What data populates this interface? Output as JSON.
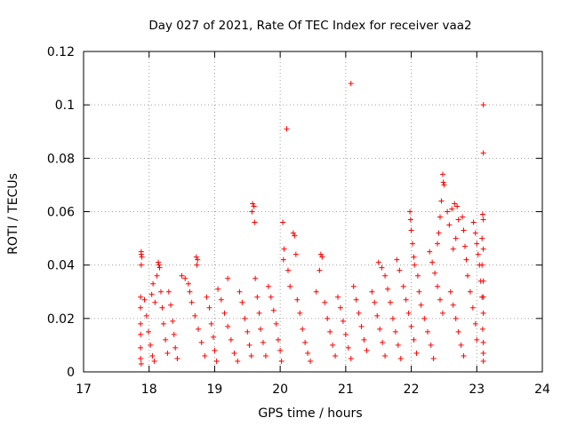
{
  "chart_data": {
    "type": "scatter",
    "title": "Day 027 of 2021, Rate Of TEC Index for receiver vaa2",
    "xlabel": "GPS time / hours",
    "ylabel": "ROTI / TECUs",
    "xlim": [
      17,
      24
    ],
    "ylim": [
      0,
      0.12
    ],
    "x_ticks": [
      "17",
      "18",
      "19",
      "20",
      "21",
      "22",
      "23",
      "24"
    ],
    "y_ticks": [
      "0",
      "0.02",
      "0.04",
      "0.06",
      "0.08",
      "0.1",
      "0.12"
    ],
    "x_tick_values": [
      17,
      18,
      19,
      20,
      21,
      22,
      23,
      24
    ],
    "y_tick_values": [
      0,
      0.02,
      0.04,
      0.06,
      0.08,
      0.1,
      0.12
    ],
    "grid": true,
    "marker": "+",
    "marker_color": "#ff0000",
    "series": [
      {
        "points": [
          [
            17.88,
            0.045
          ],
          [
            17.88,
            0.044
          ],
          [
            17.89,
            0.043
          ],
          [
            17.88,
            0.04
          ],
          [
            17.87,
            0.028
          ],
          [
            17.87,
            0.024
          ],
          [
            17.87,
            0.018
          ],
          [
            17.87,
            0.014
          ],
          [
            17.87,
            0.009
          ],
          [
            17.87,
            0.005
          ],
          [
            17.88,
            0.003
          ],
          [
            17.93,
            0.027
          ],
          [
            17.96,
            0.021
          ],
          [
            17.99,
            0.015
          ],
          [
            18.02,
            0.01
          ],
          [
            18.05,
            0.006
          ],
          [
            18.08,
            0.004
          ],
          [
            18.04,
            0.029
          ],
          [
            18.06,
            0.033
          ],
          [
            18.09,
            0.026
          ],
          [
            18.14,
            0.041
          ],
          [
            18.15,
            0.04
          ],
          [
            18.16,
            0.039
          ],
          [
            18.12,
            0.036
          ],
          [
            18.18,
            0.03
          ],
          [
            18.2,
            0.024
          ],
          [
            18.22,
            0.018
          ],
          [
            18.25,
            0.012
          ],
          [
            18.28,
            0.007
          ],
          [
            18.3,
            0.03
          ],
          [
            18.33,
            0.025
          ],
          [
            18.36,
            0.019
          ],
          [
            18.38,
            0.014
          ],
          [
            18.4,
            0.009
          ],
          [
            18.43,
            0.005
          ],
          [
            18.5,
            0.036
          ],
          [
            18.55,
            0.035
          ],
          [
            18.6,
            0.033
          ],
          [
            18.62,
            0.03
          ],
          [
            18.65,
            0.026
          ],
          [
            18.7,
            0.021
          ],
          [
            18.75,
            0.016
          ],
          [
            18.8,
            0.011
          ],
          [
            18.85,
            0.006
          ],
          [
            18.72,
            0.043
          ],
          [
            18.74,
            0.042
          ],
          [
            18.73,
            0.04
          ],
          [
            18.88,
            0.028
          ],
          [
            18.92,
            0.024
          ],
          [
            18.95,
            0.018
          ],
          [
            18.98,
            0.013
          ],
          [
            19.0,
            0.008
          ],
          [
            19.03,
            0.004
          ],
          [
            19.05,
            0.031
          ],
          [
            19.1,
            0.027
          ],
          [
            19.15,
            0.022
          ],
          [
            19.2,
            0.017
          ],
          [
            19.25,
            0.012
          ],
          [
            19.3,
            0.007
          ],
          [
            19.35,
            0.004
          ],
          [
            19.2,
            0.035
          ],
          [
            19.38,
            0.03
          ],
          [
            19.42,
            0.026
          ],
          [
            19.46,
            0.02
          ],
          [
            19.5,
            0.015
          ],
          [
            19.53,
            0.01
          ],
          [
            19.56,
            0.006
          ],
          [
            19.58,
            0.063
          ],
          [
            19.6,
            0.062
          ],
          [
            19.57,
            0.06
          ],
          [
            19.61,
            0.056
          ],
          [
            19.62,
            0.035
          ],
          [
            19.65,
            0.028
          ],
          [
            19.68,
            0.022
          ],
          [
            19.7,
            0.016
          ],
          [
            19.74,
            0.011
          ],
          [
            19.78,
            0.006
          ],
          [
            19.82,
            0.032
          ],
          [
            19.86,
            0.028
          ],
          [
            19.9,
            0.023
          ],
          [
            19.94,
            0.018
          ],
          [
            19.97,
            0.012
          ],
          [
            20.0,
            0.008
          ],
          [
            20.02,
            0.004
          ],
          [
            20.04,
            0.056
          ],
          [
            20.06,
            0.046
          ],
          [
            20.05,
            0.042
          ],
          [
            20.1,
            0.091
          ],
          [
            20.12,
            0.038
          ],
          [
            20.15,
            0.032
          ],
          [
            20.2,
            0.052
          ],
          [
            20.22,
            0.051
          ],
          [
            20.24,
            0.044
          ],
          [
            20.26,
            0.027
          ],
          [
            20.3,
            0.022
          ],
          [
            20.34,
            0.016
          ],
          [
            20.38,
            0.011
          ],
          [
            20.42,
            0.007
          ],
          [
            20.46,
            0.004
          ],
          [
            20.62,
            0.044
          ],
          [
            20.64,
            0.043
          ],
          [
            20.6,
            0.038
          ],
          [
            20.55,
            0.03
          ],
          [
            20.68,
            0.026
          ],
          [
            20.72,
            0.02
          ],
          [
            20.76,
            0.015
          ],
          [
            20.8,
            0.01
          ],
          [
            20.84,
            0.006
          ],
          [
            20.88,
            0.028
          ],
          [
            20.92,
            0.024
          ],
          [
            20.96,
            0.019
          ],
          [
            21.0,
            0.014
          ],
          [
            21.04,
            0.009
          ],
          [
            21.08,
            0.005
          ],
          [
            21.08,
            0.108
          ],
          [
            21.12,
            0.032
          ],
          [
            21.16,
            0.027
          ],
          [
            21.2,
            0.022
          ],
          [
            21.24,
            0.017
          ],
          [
            21.28,
            0.012
          ],
          [
            21.32,
            0.008
          ],
          [
            21.4,
            0.03
          ],
          [
            21.44,
            0.026
          ],
          [
            21.48,
            0.021
          ],
          [
            21.52,
            0.016
          ],
          [
            21.56,
            0.011
          ],
          [
            21.6,
            0.006
          ],
          [
            21.5,
            0.041
          ],
          [
            21.55,
            0.039
          ],
          [
            21.6,
            0.036
          ],
          [
            21.64,
            0.031
          ],
          [
            21.68,
            0.026
          ],
          [
            21.72,
            0.02
          ],
          [
            21.76,
            0.015
          ],
          [
            21.8,
            0.01
          ],
          [
            21.84,
            0.005
          ],
          [
            21.78,
            0.042
          ],
          [
            21.82,
            0.038
          ],
          [
            21.88,
            0.032
          ],
          [
            21.92,
            0.027
          ],
          [
            21.96,
            0.022
          ],
          [
            22.0,
            0.017
          ],
          [
            22.04,
            0.012
          ],
          [
            22.08,
            0.007
          ],
          [
            21.98,
            0.06
          ],
          [
            21.99,
            0.057
          ],
          [
            22.0,
            0.053
          ],
          [
            22.02,
            0.048
          ],
          [
            22.04,
            0.043
          ],
          [
            22.05,
            0.04
          ],
          [
            22.1,
            0.036
          ],
          [
            22.12,
            0.03
          ],
          [
            22.15,
            0.025
          ],
          [
            22.2,
            0.02
          ],
          [
            22.25,
            0.015
          ],
          [
            22.3,
            0.01
          ],
          [
            22.34,
            0.005
          ],
          [
            22.28,
            0.045
          ],
          [
            22.32,
            0.041
          ],
          [
            22.36,
            0.037
          ],
          [
            22.4,
            0.032
          ],
          [
            22.44,
            0.027
          ],
          [
            22.48,
            0.022
          ],
          [
            22.48,
            0.074
          ],
          [
            22.49,
            0.071
          ],
          [
            22.5,
            0.07
          ],
          [
            22.46,
            0.064
          ],
          [
            22.44,
            0.058
          ],
          [
            22.42,
            0.052
          ],
          [
            22.4,
            0.048
          ],
          [
            22.55,
            0.06
          ],
          [
            22.58,
            0.055
          ],
          [
            22.62,
            0.061
          ],
          [
            22.66,
            0.063
          ],
          [
            22.7,
            0.062
          ],
          [
            22.72,
            0.057
          ],
          [
            22.68,
            0.05
          ],
          [
            22.64,
            0.046
          ],
          [
            22.6,
            0.03
          ],
          [
            22.64,
            0.025
          ],
          [
            22.68,
            0.02
          ],
          [
            22.72,
            0.015
          ],
          [
            22.76,
            0.01
          ],
          [
            22.8,
            0.006
          ],
          [
            22.78,
            0.058
          ],
          [
            22.8,
            0.053
          ],
          [
            22.82,
            0.047
          ],
          [
            22.84,
            0.042
          ],
          [
            22.86,
            0.036
          ],
          [
            22.9,
            0.03
          ],
          [
            22.94,
            0.024
          ],
          [
            22.98,
            0.018
          ],
          [
            23.0,
            0.012
          ],
          [
            22.95,
            0.056
          ],
          [
            22.98,
            0.052
          ],
          [
            23.0,
            0.048
          ],
          [
            23.02,
            0.044
          ],
          [
            23.04,
            0.04
          ],
          [
            23.06,
            0.034
          ],
          [
            23.08,
            0.028
          ],
          [
            23.1,
            0.1
          ],
          [
            23.1,
            0.082
          ],
          [
            23.09,
            0.059
          ],
          [
            23.1,
            0.057
          ],
          [
            23.08,
            0.05
          ],
          [
            23.1,
            0.046
          ],
          [
            23.08,
            0.04
          ],
          [
            23.1,
            0.034
          ],
          [
            23.1,
            0.028
          ],
          [
            23.1,
            0.022
          ],
          [
            23.09,
            0.016
          ],
          [
            23.1,
            0.011
          ],
          [
            23.1,
            0.007
          ],
          [
            23.1,
            0.004
          ]
        ]
      }
    ]
  }
}
